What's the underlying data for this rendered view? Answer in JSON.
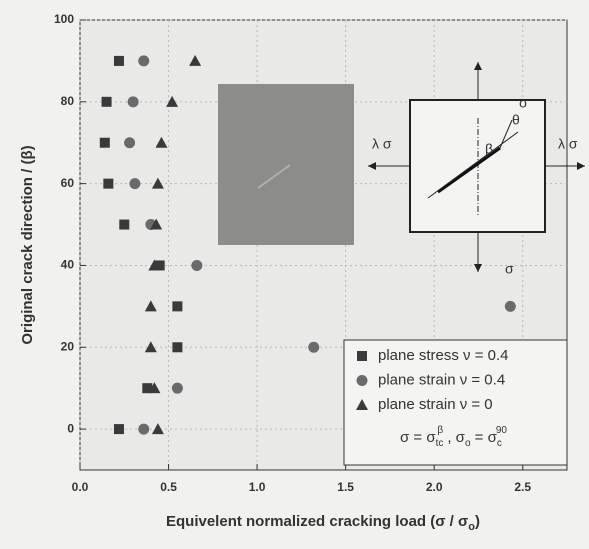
{
  "chart_data": {
    "type": "scatter",
    "x_label": {
      "text": "Equivelent normalized cracking load (σ / σ",
      "sub": "o",
      "end": ")"
    },
    "y_label": "Original crack direction / (β)",
    "xlim": [
      0,
      2.75
    ],
    "ylim": [
      -10,
      100
    ],
    "xticks": [
      {
        "value": 0,
        "label": "0.0"
      },
      0.5,
      {
        "value": 1,
        "label": "1.0"
      },
      1.5,
      {
        "value": 2,
        "label": "2.0"
      },
      2.5
    ],
    "yticks": [
      0,
      20,
      40,
      60,
      80,
      100
    ],
    "grid": true,
    "legend": "lower right",
    "series": [
      {
        "name": "plane stress ν = 0.4",
        "color": "#3a3a3a",
        "marker": "square",
        "x": [
          0.22,
          0.15,
          0.14,
          0.16,
          0.25,
          0.45,
          0.55,
          0.55,
          0.38,
          0.22
        ],
        "values": [
          90,
          80,
          70,
          60,
          50,
          40,
          30,
          20,
          10,
          0
        ]
      },
      {
        "name": "plane strain ν = 0.4",
        "color": "#6a6a6a",
        "marker": "circle",
        "x": [
          0.36,
          0.3,
          0.28,
          0.31,
          0.4,
          0.66,
          2.43,
          1.32,
          0.55,
          0.36
        ],
        "values": [
          90,
          80,
          70,
          60,
          50,
          40,
          30,
          20,
          10,
          0
        ]
      },
      {
        "name": "plane strain ν = 0",
        "color": "#3a3a3a",
        "marker": "triangle",
        "x": [
          0.65,
          0.52,
          0.46,
          0.44,
          0.43,
          0.42,
          0.4,
          0.4,
          0.42,
          0.44
        ],
        "values": [
          90,
          80,
          70,
          60,
          50,
          40,
          30,
          20,
          10,
          0
        ]
      }
    ],
    "legend_note": [
      "σ = σ",
      "tc",
      "β",
      " , σ",
      "o",
      " = σ",
      "c",
      "90"
    ],
    "inset_labels": {
      "top": "σ",
      "bottom": "σ",
      "left": "λ σ",
      "right": "λ σ",
      "theta": "θ",
      "beta": "β"
    }
  }
}
